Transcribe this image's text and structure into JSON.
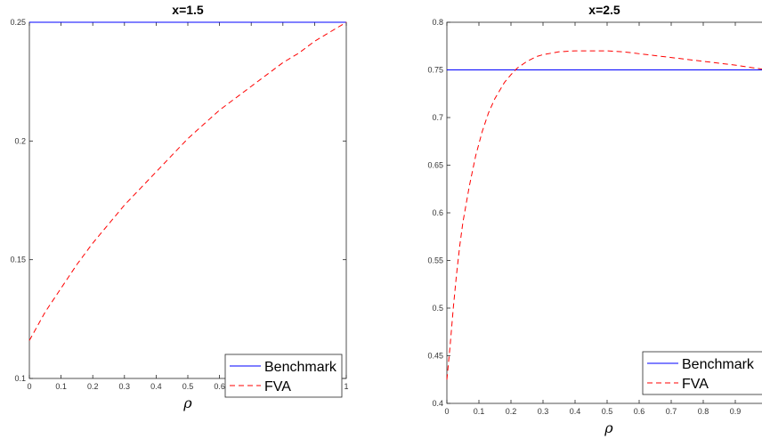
{
  "chart_data": [
    {
      "type": "line",
      "title": "x=1.5",
      "xlabel": "ρ",
      "ylabel": "",
      "xlim": [
        0,
        1
      ],
      "ylim": [
        0.1,
        0.25
      ],
      "xticks": [
        "0",
        "0.1",
        "0.2",
        "0.3",
        "0.4",
        "0.5",
        "0.6",
        "0.7",
        "0.8",
        "0.9",
        "1"
      ],
      "yticks": [
        "0.1",
        "0.15",
        "0.2",
        "0.25"
      ],
      "legend_position": "bottom-right",
      "series": [
        {
          "name": "Benchmark",
          "style": "solid",
          "color": "#0000ff",
          "x": [
            0,
            1
          ],
          "y": [
            0.25,
            0.25
          ]
        },
        {
          "name": "FVA",
          "style": "dashed",
          "color": "#ff0000",
          "x": [
            0,
            0.05,
            0.1,
            0.15,
            0.2,
            0.25,
            0.3,
            0.35,
            0.4,
            0.45,
            0.5,
            0.55,
            0.6,
            0.65,
            0.7,
            0.75,
            0.8,
            0.85,
            0.9,
            0.95,
            1
          ],
          "y": [
            0.116,
            0.128,
            0.138,
            0.148,
            0.157,
            0.165,
            0.173,
            0.18,
            0.187,
            0.194,
            0.201,
            0.207,
            0.213,
            0.218,
            0.223,
            0.228,
            0.233,
            0.237,
            0.242,
            0.246,
            0.25
          ]
        }
      ]
    },
    {
      "type": "line",
      "title": "x=2.5",
      "xlabel": "ρ",
      "ylabel": "",
      "xlim": [
        0,
        1
      ],
      "ylim": [
        0.4,
        0.8
      ],
      "xticks": [
        "0",
        "0.1",
        "0.2",
        "0.3",
        "0.4",
        "0.5",
        "0.6",
        "0.7",
        "0.8",
        "0.9"
      ],
      "yticks": [
        "0.4",
        "0.45",
        "0.5",
        "0.55",
        "0.6",
        "0.65",
        "0.7",
        "0.75",
        "0.8"
      ],
      "legend_position": "bottom-right",
      "series": [
        {
          "name": "Benchmark",
          "style": "solid",
          "color": "#0000ff",
          "x": [
            0,
            1
          ],
          "y": [
            0.75,
            0.75
          ]
        },
        {
          "name": "FVA",
          "style": "dashed",
          "color": "#ff0000",
          "x": [
            0,
            0.01,
            0.02,
            0.03,
            0.04,
            0.05,
            0.07,
            0.09,
            0.11,
            0.13,
            0.15,
            0.18,
            0.2,
            0.22,
            0.25,
            0.28,
            0.3,
            0.35,
            0.4,
            0.45,
            0.5,
            0.55,
            0.6,
            0.7,
            0.8,
            0.9,
            1.0
          ],
          "y": [
            0.425,
            0.46,
            0.5,
            0.535,
            0.565,
            0.59,
            0.628,
            0.66,
            0.685,
            0.705,
            0.72,
            0.737,
            0.745,
            0.752,
            0.759,
            0.764,
            0.766,
            0.769,
            0.77,
            0.77,
            0.77,
            0.769,
            0.767,
            0.763,
            0.759,
            0.755,
            0.75
          ]
        }
      ]
    }
  ]
}
